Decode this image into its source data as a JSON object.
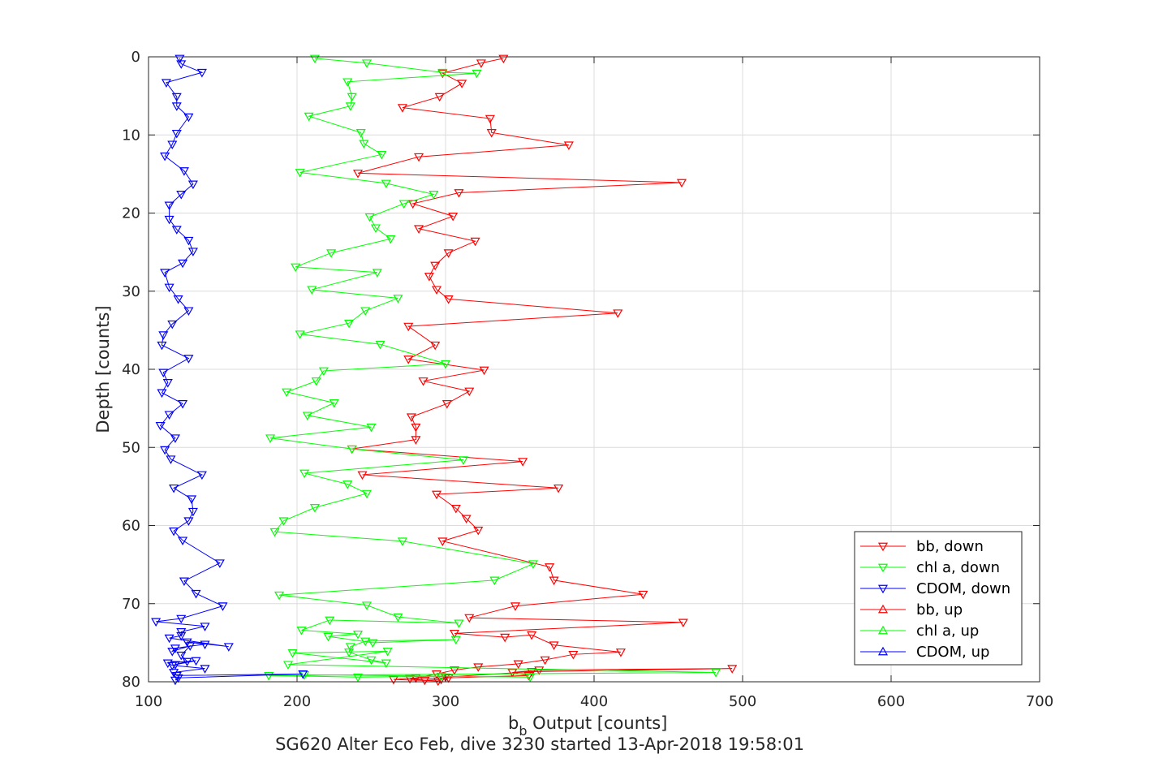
{
  "chart_data": {
    "type": "line",
    "xlabel_main": "b",
    "xlabel_sub": "b",
    "xlabel_rest": " Output [counts]",
    "ylabel": "Depth [counts]",
    "caption": "SG620 Alter Eco Feb, dive 3230 started 13-Apr-2018 19:58:01",
    "xlim": [
      100,
      700
    ],
    "ylim": [
      0,
      80
    ],
    "y_reversed": true,
    "xticks": [
      "100",
      "200",
      "300",
      "400",
      "500",
      "600",
      "700"
    ],
    "yticks": [
      "0",
      "10",
      "20",
      "30",
      "40",
      "50",
      "60",
      "70",
      "80"
    ],
    "grid": true,
    "legend_position": "bottom-right",
    "series": [
      {
        "name": "bb, down",
        "color": "#ff0000",
        "marker": "triangle-down",
        "x": [
          339,
          324,
          298,
          311,
          296,
          271,
          330,
          331,
          383,
          282,
          241,
          459,
          309,
          278,
          305,
          282,
          320,
          302,
          293,
          289,
          294,
          302,
          416,
          275,
          293,
          275,
          326,
          285,
          316,
          301,
          277,
          280,
          280,
          237,
          352,
          244,
          376,
          294,
          307,
          314,
          322,
          298,
          370,
          373,
          433,
          347,
          316,
          460,
          306,
          340,
          358,
          373,
          418,
          386,
          367,
          349,
          322,
          306,
          294,
          280,
          265,
          295,
          300,
          358,
          493,
          363,
          345,
          356,
          302,
          276,
          286,
          297
        ],
        "y": [
          0.2,
          0.8,
          2.1,
          3.4,
          5.1,
          6.5,
          7.9,
          9.7,
          11.3,
          12.8,
          14.9,
          16.1,
          17.4,
          18.8,
          20.4,
          22.0,
          23.6,
          25.1,
          26.7,
          28.1,
          29.8,
          31.0,
          32.8,
          34.5,
          36.9,
          38.7,
          40.1,
          41.5,
          42.8,
          44.4,
          46.1,
          47.4,
          49.0,
          50.2,
          51.8,
          53.5,
          55.2,
          56.0,
          57.8,
          59.1,
          60.6,
          62.0,
          65.3,
          67.0,
          68.8,
          70.3,
          71.8,
          72.4,
          73.8,
          74.3,
          74.0,
          75.3,
          76.2,
          76.5,
          77.2,
          77.7,
          78.1,
          78.5,
          79.0,
          79.5,
          79.7,
          79.9,
          79.4,
          78.7,
          78.3,
          78.5,
          78.8,
          79.2,
          79.5,
          79.6,
          79.8,
          79.7
        ]
      },
      {
        "name": "chl a, down",
        "color": "#00ff00",
        "marker": "triangle-down",
        "x": [
          212,
          247,
          298,
          321,
          234,
          237,
          236,
          208,
          243,
          245,
          257,
          202,
          260,
          292,
          272,
          249,
          253,
          263,
          223,
          199,
          254,
          210,
          268,
          246,
          235,
          202,
          256,
          300,
          218,
          213,
          193,
          225,
          207,
          250,
          182,
          237,
          312,
          205,
          234,
          247,
          212,
          191,
          185,
          271,
          359,
          333,
          188,
          247,
          268,
          309,
          222,
          203,
          241,
          221,
          251,
          307,
          246,
          236,
          235,
          250,
          260,
          197,
          261,
          194,
          482,
          181,
          241,
          297,
          357,
          205
        ],
        "y": [
          0.2,
          0.8,
          2.0,
          2.1,
          3.2,
          5.1,
          6.3,
          7.6,
          9.7,
          11.1,
          12.5,
          14.8,
          16.2,
          17.6,
          18.8,
          20.5,
          21.9,
          23.3,
          25.1,
          26.9,
          27.6,
          29.8,
          30.9,
          32.5,
          34.1,
          35.5,
          36.8,
          39.3,
          40.2,
          41.5,
          42.9,
          44.3,
          45.9,
          47.4,
          48.8,
          50.2,
          51.6,
          53.3,
          54.7,
          55.9,
          57.7,
          59.4,
          60.8,
          62.0,
          64.9,
          67.0,
          68.9,
          70.2,
          71.7,
          72.5,
          72.1,
          73.4,
          73.9,
          74.2,
          75.0,
          74.6,
          74.8,
          75.5,
          76.2,
          77.2,
          77.6,
          76.3,
          76.1,
          77.8,
          78.8,
          79.2,
          79.4,
          79.3,
          79.4,
          79.1
        ]
      },
      {
        "name": "CDOM, down",
        "color": "#0000ff",
        "marker": "triangle-down",
        "x": [
          121,
          122,
          136,
          112,
          119,
          119,
          127,
          119,
          116,
          111,
          124,
          130,
          122,
          114,
          114,
          119,
          127,
          130,
          123,
          111,
          114,
          120,
          127,
          116,
          110,
          109,
          127,
          110,
          113,
          109,
          123,
          114,
          108,
          118,
          111,
          115,
          136,
          117,
          129,
          130,
          127,
          117,
          123,
          148,
          124,
          132,
          150,
          122,
          105,
          138,
          122,
          122,
          114,
          154,
          126,
          138,
          118,
          116,
          128,
          122,
          126,
          118,
          132,
          113,
          116,
          138,
          117,
          119,
          204,
          120,
          118
        ],
        "y": [
          0.2,
          0.9,
          2.0,
          3.3,
          5.1,
          6.3,
          7.7,
          9.8,
          11.2,
          12.7,
          14.6,
          16.3,
          17.6,
          19.0,
          20.8,
          22.1,
          23.5,
          24.9,
          26.4,
          27.6,
          29.5,
          31.0,
          32.5,
          34.2,
          35.6,
          36.9,
          38.6,
          40.4,
          41.7,
          43.0,
          44.4,
          45.8,
          47.2,
          48.8,
          50.3,
          51.5,
          53.5,
          55.2,
          56.6,
          58.2,
          59.4,
          60.7,
          61.9,
          64.8,
          67.1,
          68.7,
          70.3,
          71.9,
          72.3,
          72.9,
          73.6,
          74.1,
          74.4,
          75.5,
          74.9,
          75.2,
          75.7,
          76.1,
          75.4,
          76.6,
          77.4,
          77.8,
          77.3,
          77.6,
          77.9,
          78.3,
          78.8,
          79.2,
          79.0,
          79.5,
          79.8
        ]
      },
      {
        "name": "bb, up",
        "color": "#ff0000",
        "marker": "triangle-up",
        "x": [],
        "y": []
      },
      {
        "name": "chl a, up",
        "color": "#00ff00",
        "marker": "triangle-up",
        "x": [],
        "y": []
      },
      {
        "name": "CDOM, up",
        "color": "#0000ff",
        "marker": "triangle-up",
        "x": [],
        "y": []
      }
    ]
  }
}
